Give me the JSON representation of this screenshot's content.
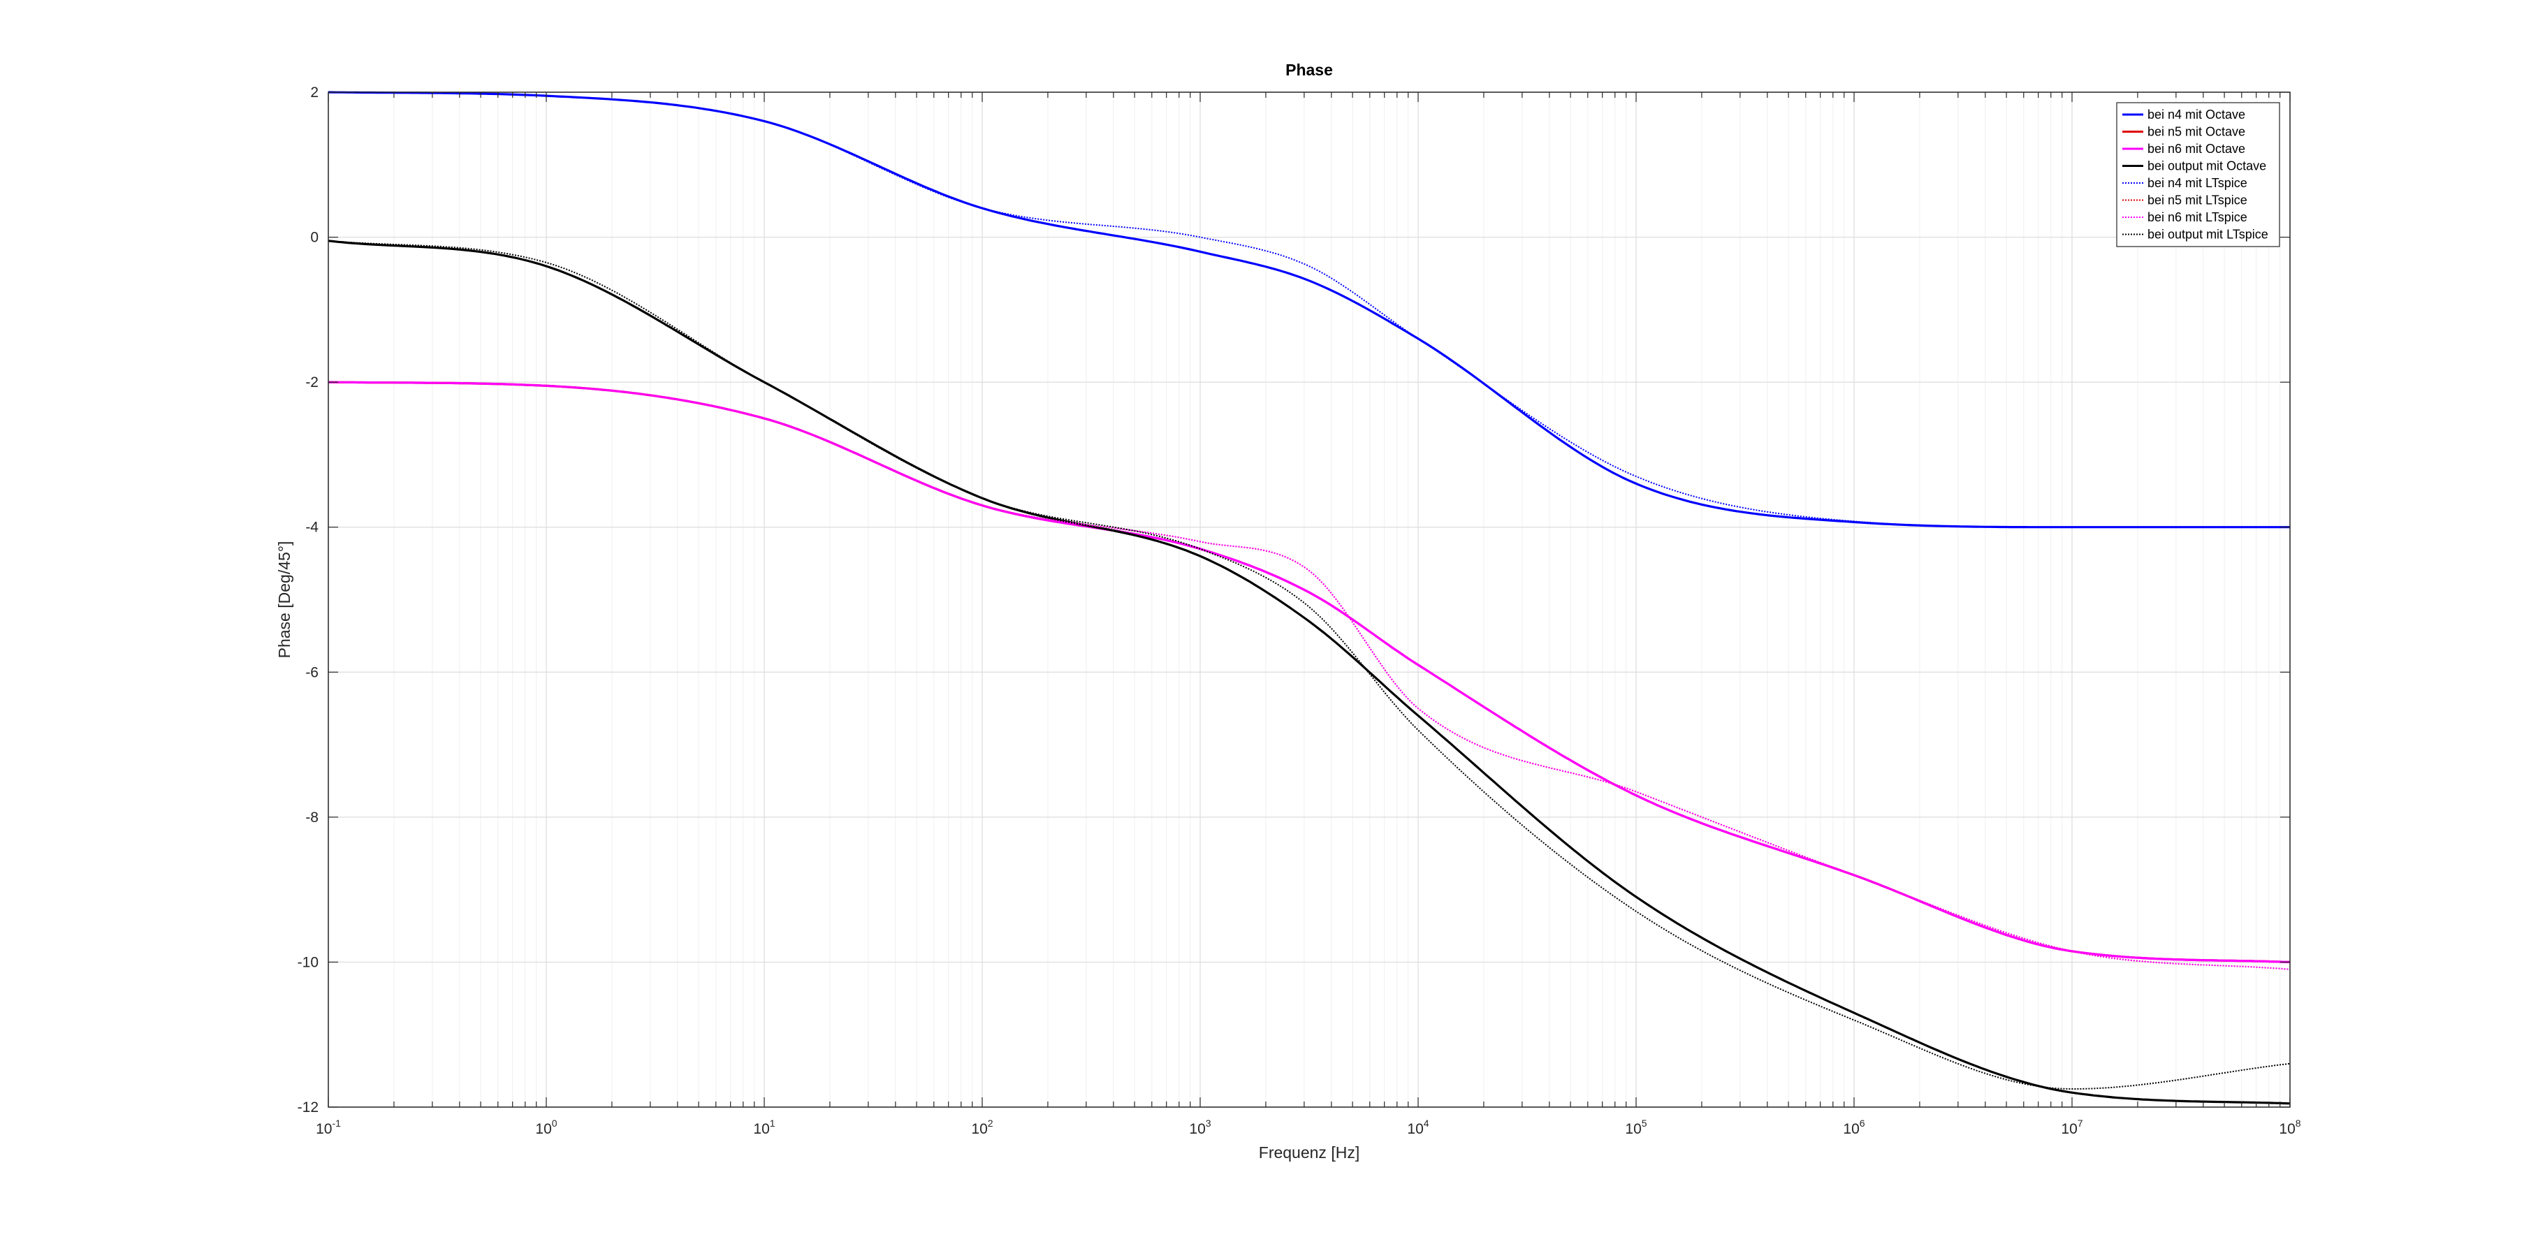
{
  "chart_data": {
    "type": "line",
    "title": "Phase",
    "xlabel": "Frequenz [Hz]",
    "ylabel": "Phase [Deg/45°]",
    "xscale": "log",
    "xlim": [
      0.1,
      100000000
    ],
    "ylim": [
      -12,
      2
    ],
    "grid": true,
    "legend_position": "top-right",
    "x_ticks": [
      {
        "base": "10",
        "exp": "-1"
      },
      {
        "base": "10",
        "exp": "0"
      },
      {
        "base": "10",
        "exp": "1"
      },
      {
        "base": "10",
        "exp": "2"
      },
      {
        "base": "10",
        "exp": "3"
      },
      {
        "base": "10",
        "exp": "4"
      },
      {
        "base": "10",
        "exp": "5"
      },
      {
        "base": "10",
        "exp": "6"
      },
      {
        "base": "10",
        "exp": "7"
      },
      {
        "base": "10",
        "exp": "8"
      }
    ],
    "y_ticks": [
      "2",
      "0",
      "-2",
      "-4",
      "-6",
      "-8",
      "-10",
      "-12"
    ],
    "x": [
      0.1,
      1,
      10,
      100,
      1000,
      3162,
      10000,
      100000,
      1000000,
      10000000,
      100000000
    ],
    "series": [
      {
        "name": "bei n4 mit Octave",
        "color": "#0000ff",
        "style": "solid",
        "values": [
          2.0,
          1.95,
          1.6,
          0.4,
          -0.2,
          -0.6,
          -1.4,
          -3.4,
          -3.93,
          -4.0,
          -4.0
        ]
      },
      {
        "name": "bei n5 mit Octave",
        "color": "#e00000",
        "style": "solid",
        "values": [
          -2.0,
          -2.05,
          -2.5,
          -3.7,
          -4.3,
          -4.9,
          -5.9,
          -7.7,
          -8.8,
          -9.85,
          -10.0
        ]
      },
      {
        "name": "bei n6 mit Octave",
        "color": "#ff00ff",
        "style": "solid",
        "values": [
          -2.0,
          -2.05,
          -2.5,
          -3.7,
          -4.3,
          -4.9,
          -5.9,
          -7.7,
          -8.8,
          -9.85,
          -10.0
        ]
      },
      {
        "name": "bei output mit Octave",
        "color": "#000000",
        "style": "solid",
        "values": [
          -0.05,
          -0.4,
          -2.0,
          -3.6,
          -4.4,
          -5.3,
          -6.6,
          -9.1,
          -10.7,
          -11.8,
          -11.95
        ]
      },
      {
        "name": "bei n4 mit LTspice",
        "color": "#0000ff",
        "style": "dotted",
        "values": [
          2.0,
          1.95,
          1.6,
          0.4,
          0.0,
          -0.4,
          -1.4,
          -3.3,
          -3.92,
          -4.0,
          -4.0
        ]
      },
      {
        "name": "bei n5 mit LTspice",
        "color": "#e00000",
        "style": "dotted",
        "values": [
          -2.0,
          -2.05,
          -2.5,
          -3.7,
          -4.2,
          -4.6,
          -6.5,
          -7.65,
          -8.8,
          -9.85,
          -10.1
        ]
      },
      {
        "name": "bei n6 mit LTspice",
        "color": "#ff00ff",
        "style": "dotted",
        "values": [
          -2.0,
          -2.05,
          -2.5,
          -3.7,
          -4.2,
          -4.6,
          -6.5,
          -7.65,
          -8.8,
          -9.85,
          -10.1
        ]
      },
      {
        "name": "bei output mit LTspice",
        "color": "#000000",
        "style": "dotted",
        "values": [
          -0.05,
          -0.35,
          -2.0,
          -3.6,
          -4.3,
          -5.1,
          -6.8,
          -9.3,
          -10.8,
          -11.75,
          -11.4
        ]
      }
    ]
  }
}
